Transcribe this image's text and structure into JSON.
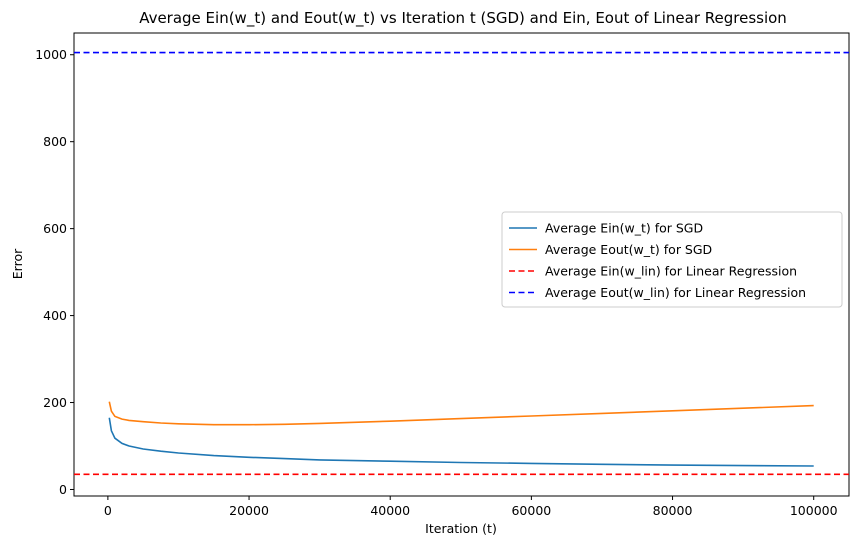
{
  "chart_data": {
    "type": "line",
    "title": "Average Ein(w_t) and Eout(w_t) vs Iteration t (SGD) and Ein, Eout of Linear Regression",
    "xlabel": "Iteration (t)",
    "ylabel": "Error",
    "xlim": [
      -4800,
      105000
    ],
    "ylim": [
      -15,
      1050
    ],
    "xticks": [
      0,
      20000,
      40000,
      60000,
      80000,
      100000
    ],
    "yticks": [
      0,
      200,
      400,
      600,
      800,
      1000
    ],
    "grid": false,
    "legend_position": "center-right",
    "series": [
      {
        "name": "Average Ein(w_t) for SGD",
        "color": "#1f77b4",
        "style": "solid",
        "x": [
          200,
          500,
          1000,
          2000,
          3000,
          5000,
          7500,
          10000,
          15000,
          20000,
          25000,
          30000,
          40000,
          50000,
          60000,
          70000,
          80000,
          90000,
          100000
        ],
        "y": [
          165,
          135,
          118,
          106,
          100,
          93,
          88,
          84,
          78,
          74,
          71,
          68,
          65,
          62,
          60,
          58,
          56,
          55,
          54
        ]
      },
      {
        "name": "Average Eout(w_t) for SGD",
        "color": "#ff7f0e",
        "style": "solid",
        "x": [
          200,
          500,
          1000,
          2000,
          3000,
          5000,
          7500,
          10000,
          15000,
          20000,
          25000,
          30000,
          40000,
          50000,
          60000,
          70000,
          80000,
          90000,
          100000
        ],
        "y": [
          202,
          180,
          168,
          162,
          159,
          156,
          153,
          151,
          149,
          149,
          150,
          152,
          157,
          163,
          169,
          175,
          181,
          187,
          193
        ]
      },
      {
        "name": "Average Ein(w_lin) for Linear Regression",
        "color": "#ff0000",
        "style": "dashed",
        "hline": 35
      },
      {
        "name": "Average Eout(w_lin) for Linear Regression",
        "color": "#0000ff",
        "style": "dashed",
        "hline": 1005
      }
    ]
  }
}
